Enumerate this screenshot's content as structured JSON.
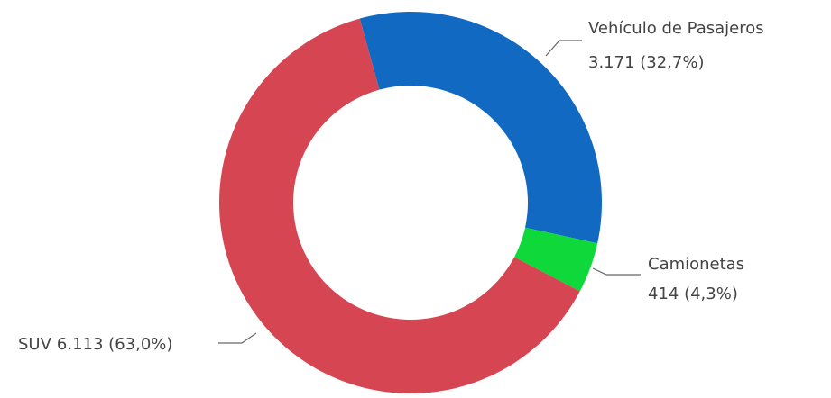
{
  "chart_data": {
    "type": "donut",
    "categories": [
      "Vehículo de Pasajeros",
      "Camionetas",
      "SUV"
    ],
    "values": [
      3171,
      414,
      6113
    ],
    "value_labels": [
      "3.171 (32,7%)",
      "414 (4,3%)",
      "6.113 (63,0%)"
    ],
    "colors": [
      "#1169c2",
      "#0fd93a",
      "#d64552"
    ]
  }
}
